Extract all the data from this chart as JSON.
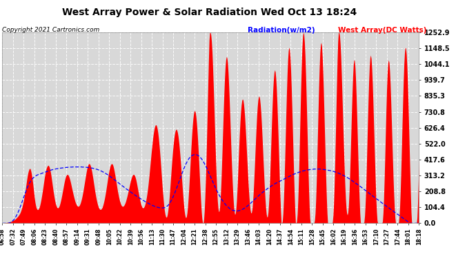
{
  "title": "West Array Power & Solar Radiation Wed Oct 13 18:24",
  "copyright": "Copyright 2021 Cartronics.com",
  "legend_radiation": "Radiation(w/m2)",
  "legend_west": "West Array(DC Watts)",
  "y_ticks": [
    0.0,
    104.4,
    208.8,
    313.2,
    417.6,
    522.0,
    626.4,
    730.8,
    835.3,
    939.7,
    1044.1,
    1148.5,
    1252.9
  ],
  "y_max": 1252.9,
  "background_color": "#ffffff",
  "plot_bg_color": "#d8d8d8",
  "grid_color": "#ffffff",
  "title_color": "#000000",
  "radiation_color": "#0000ff",
  "west_array_color": "#ff0000",
  "x_labels": [
    "06:58",
    "07:32",
    "07:49",
    "08:06",
    "08:23",
    "08:40",
    "08:57",
    "09:14",
    "09:31",
    "09:48",
    "10:05",
    "10:22",
    "10:39",
    "10:56",
    "11:13",
    "11:30",
    "11:47",
    "12:04",
    "12:21",
    "12:38",
    "12:55",
    "13:12",
    "13:29",
    "13:46",
    "14:03",
    "14:20",
    "14:37",
    "14:54",
    "15:11",
    "15:28",
    "15:45",
    "16:02",
    "16:19",
    "16:36",
    "16:53",
    "17:10",
    "17:27",
    "17:44",
    "18:01",
    "18:18"
  ],
  "n_points": 700,
  "west_profile": [
    0,
    0,
    0,
    2,
    2,
    3,
    3,
    4,
    5,
    5,
    6,
    7,
    8,
    9,
    10,
    12,
    14,
    16,
    18,
    20,
    22,
    25,
    28,
    32,
    36,
    40,
    45,
    50,
    56,
    62,
    70,
    80,
    92,
    105,
    120,
    138,
    158,
    180,
    205,
    230,
    258,
    285,
    310,
    330,
    345,
    355,
    360,
    355,
    340,
    320,
    295,
    265,
    230,
    195,
    162,
    135,
    115,
    100,
    92,
    88,
    90,
    95,
    105,
    118,
    135,
    155,
    178,
    202,
    228,
    255,
    282,
    308,
    330,
    348,
    362,
    372,
    378,
    380,
    375,
    365,
    350,
    330,
    305,
    278,
    250,
    222,
    196,
    172,
    150,
    132,
    118,
    108,
    102,
    100,
    102,
    108,
    118,
    132,
    148,
    166,
    186,
    207,
    228,
    250,
    270,
    288,
    302,
    312,
    318,
    320,
    318,
    312,
    302,
    290,
    275,
    258,
    240,
    222,
    205,
    188,
    172,
    157,
    143,
    132,
    123,
    116,
    112,
    110,
    111,
    115,
    122,
    132,
    145,
    160,
    178,
    198,
    220,
    244,
    268,
    292,
    316,
    338,
    358,
    374,
    385,
    390,
    390,
    385,
    375,
    360,
    342,
    320,
    296,
    270,
    244,
    218,
    194,
    172,
    152,
    135,
    120,
    108,
    99,
    93,
    90,
    90,
    93,
    99,
    108,
    120,
    135,
    152,
    172,
    194,
    218,
    244,
    270,
    296,
    320,
    342,
    360,
    375,
    385,
    390,
    390,
    385,
    374,
    358,
    338,
    316,
    292,
    268,
    244,
    220,
    198,
    178,
    160,
    145,
    132,
    122,
    115,
    111,
    110,
    112,
    116,
    123,
    132,
    143,
    157,
    172,
    188,
    205,
    222,
    240,
    258,
    275,
    290,
    302,
    312,
    318,
    320,
    318,
    312,
    302,
    288,
    270,
    250,
    228,
    207,
    186,
    166,
    148,
    132,
    118,
    108,
    102,
    100,
    102,
    108,
    118,
    132,
    150,
    172,
    198,
    228,
    262,
    300,
    340,
    382,
    424,
    465,
    504,
    540,
    573,
    600,
    622,
    637,
    645,
    645,
    637,
    620,
    595,
    562,
    522,
    476,
    425,
    370,
    315,
    260,
    208,
    160,
    118,
    84,
    60,
    44,
    38,
    42,
    58,
    84,
    120,
    164,
    214,
    268,
    323,
    378,
    430,
    478,
    520,
    555,
    583,
    603,
    614,
    616,
    609,
    594,
    570,
    538,
    499,
    454,
    404,
    350,
    294,
    238,
    185,
    136,
    94,
    62,
    42,
    35,
    44,
    68,
    108,
    162,
    226,
    296,
    370,
    445,
    517,
    583,
    640,
    686,
    718,
    736,
    738,
    726,
    698,
    656,
    601,
    536,
    462,
    382,
    300,
    219,
    143,
    78,
    30,
    4,
    0,
    24,
    80,
    170,
    285,
    420,
    571,
    733,
    900,
    1063,
    1201,
    1252,
    1252,
    1235,
    1192,
    1123,
    1031,
    920,
    797,
    668,
    541,
    420,
    311,
    218,
    146,
    98,
    75,
    80,
    114,
    175,
    262,
    368,
    488,
    614,
    738,
    852,
    950,
    1025,
    1073,
    1093,
    1085,
    1049,
    987,
    903,
    803,
    693,
    580,
    468,
    363,
    269,
    188,
    124,
    80,
    58,
    62,
    90,
    143,
    218,
    308,
    404,
    500,
    589,
    667,
    730,
    776,
    805,
    815,
    808,
    782,
    740,
    683,
    615,
    540,
    461,
    383,
    307,
    237,
    175,
    124,
    88,
    68,
    67,
    87,
    128,
    188,
    263,
    350,
    443,
    537,
    625,
    703,
    765,
    808,
    831,
    833,
    814,
    776,
    720,
    650,
    570,
    483,
    395,
    308,
    228,
    157,
    100,
    60,
    40,
    43,
    72,
    128,
    209,
    310,
    425,
    546,
    666,
    776,
    870,
    942,
    988,
    1006,
    994,
    952,
    882,
    788,
    677,
    556,
    430,
    305,
    187,
    84,
    5,
    0,
    14,
    64,
    152,
    270,
    410,
    561,
    714,
    856,
    978,
    1072,
    1132,
    1154,
    1138,
    1086,
    1002,
    891,
    760,
    616,
    468,
    324,
    192,
    82,
    4,
    0,
    12,
    60,
    148,
    267,
    411,
    574,
    742,
    903,
    1044,
    1155,
    1225,
    1252,
    1240,
    1188,
    1101,
    984,
    844,
    690,
    532,
    378,
    238,
    119,
    32,
    0,
    0,
    0,
    0,
    0,
    0,
    2,
    18,
    64,
    148,
    268,
    416,
    578,
    740,
    892,
    1021,
    1118,
    1173,
    1186,
    1156,
    1088,
    987,
    860,
    718,
    569,
    422,
    284,
    162,
    64,
    0,
    0,
    0,
    0,
    0,
    0,
    0,
    0,
    8,
    50,
    128,
    244,
    390,
    558,
    736,
    910,
    1068,
    1190,
    1252,
    1252,
    1232,
    1178,
    1095,
    988,
    865,
    732,
    598,
    468,
    348,
    244,
    160,
    100,
    64,
    54,
    72,
    120,
    200,
    308,
    436,
    576,
    716,
    846,
    956,
    1034,
    1072,
    1067,
    1020,
    938,
    826,
    694,
    554,
    414,
    280,
    162,
    68,
    6,
    0,
    0,
    0,
    0,
    0,
    8,
    48,
    122,
    230,
    362,
    510,
    663,
    808,
    933,
    1029,
    1086,
    1103,
    1080,
    1018,
    926,
    810,
    678,
    540,
    404,
    276,
    164,
    76,
    18,
    0,
    0,
    0,
    0,
    0,
    0,
    0,
    0,
    12,
    68,
    162,
    289,
    436,
    592,
    744,
    878,
    982,
    1048,
    1072,
    1055,
    1000,
    912,
    800,
    674,
    542,
    412,
    290,
    184,
    98,
    36,
    2,
    0,
    0,
    0,
    0,
    6,
    44,
    116,
    220,
    349,
    496,
    650,
    800,
    934,
    1042,
    1116,
    1152,
    1149,
    1108,
    1032,
    924,
    793,
    646,
    492,
    340,
    196,
    72,
    0,
    0,
    0,
    0,
    0,
    0,
    0,
    0,
    0,
    36,
    128,
    261,
    424
  ],
  "radiation_profile": [
    0,
    0,
    0,
    0,
    0,
    0,
    0,
    0,
    0,
    0,
    0,
    2,
    3,
    4,
    6,
    8,
    11,
    14,
    18,
    22,
    27,
    32,
    38,
    45,
    52,
    60,
    68,
    77,
    86,
    96,
    106,
    117,
    128,
    139,
    150,
    162,
    173,
    184,
    195,
    206,
    216,
    226,
    235,
    244,
    252,
    260,
    267,
    274,
    280,
    285,
    290,
    294,
    298,
    302,
    305,
    308,
    310,
    313,
    315,
    317,
    318,
    320,
    321,
    323,
    324,
    325,
    327,
    328,
    330,
    331,
    332,
    334,
    335,
    337,
    338,
    340,
    341,
    342,
    344,
    345,
    346,
    347,
    349,
    350,
    351,
    352,
    353,
    354,
    355,
    355,
    356,
    357,
    357,
    358,
    359,
    359,
    360,
    361,
    361,
    362,
    362,
    363,
    363,
    364,
    364,
    365,
    365,
    366,
    366,
    366,
    367,
    367,
    367,
    368,
    368,
    368,
    368,
    368,
    369,
    369,
    369,
    369,
    369,
    369,
    369,
    369,
    369,
    369,
    369,
    369,
    369,
    369,
    369,
    369,
    368,
    368,
    368,
    368,
    368,
    367,
    367,
    367,
    366,
    366,
    365,
    365,
    364,
    364,
    363,
    362,
    362,
    361,
    360,
    359,
    358,
    357,
    356,
    355,
    354,
    353,
    352,
    350,
    349,
    347,
    346,
    344,
    342,
    340,
    338,
    336,
    334,
    332,
    330,
    327,
    325,
    322,
    320,
    317,
    314,
    312,
    309,
    306,
    303,
    300,
    297,
    294,
    291,
    288,
    285,
    282,
    279,
    276,
    273,
    270,
    267,
    264,
    261,
    258,
    255,
    252,
    249,
    246,
    243,
    240,
    237,
    234,
    231,
    228,
    225,
    222,
    220,
    217,
    214,
    211,
    208,
    205,
    202,
    200,
    197,
    194,
    192,
    189,
    186,
    183,
    181,
    178,
    175,
    173,
    170,
    168,
    165,
    163,
    160,
    158,
    155,
    153,
    150,
    148,
    146,
    143,
    141,
    139,
    136,
    134,
    132,
    130,
    128,
    126,
    124,
    122,
    120,
    118,
    116,
    115,
    113,
    111,
    110,
    108,
    107,
    106,
    105,
    104,
    103,
    102,
    101,
    101,
    100,
    100,
    100,
    100,
    100,
    101,
    102,
    103,
    105,
    107,
    110,
    113,
    117,
    121,
    126,
    132,
    138,
    145,
    152,
    160,
    168,
    177,
    186,
    195,
    205,
    215,
    225,
    235,
    246,
    256,
    267,
    278,
    289,
    300,
    311,
    322,
    332,
    342,
    352,
    362,
    371,
    380,
    388,
    396,
    404,
    411,
    417,
    423,
    428,
    433,
    437,
    440,
    443,
    445,
    447,
    449,
    450,
    450,
    450,
    450,
    449,
    447,
    445,
    443,
    440,
    437,
    433,
    428,
    423,
    418,
    412,
    406,
    399,
    392,
    385,
    377,
    369,
    361,
    353,
    344,
    335,
    326,
    317,
    308,
    299,
    290,
    281,
    272,
    263,
    254,
    246,
    237,
    229,
    221,
    213,
    205,
    198,
    190,
    183,
    176,
    170,
    163,
    157,
    151,
    146,
    140,
    135,
    130,
    125,
    120,
    116,
    112,
    108,
    105,
    101,
    98,
    95,
    93,
    90,
    88,
    86,
    84,
    83,
    82,
    81,
    80,
    80,
    80,
    80,
    80,
    81,
    82,
    83,
    84,
    86,
    87,
    89,
    91,
    93,
    95,
    98,
    100,
    103,
    106,
    109,
    112,
    115,
    118,
    122,
    125,
    129,
    132,
    136,
    140,
    143,
    147,
    151,
    154,
    158,
    162,
    165,
    169,
    172,
    176,
    180,
    183,
    187,
    190,
    193,
    197,
    200,
    203,
    206,
    209,
    212,
    215,
    218,
    221,
    224,
    227,
    230,
    233,
    235,
    238,
    241,
    243,
    246,
    248,
    251,
    253,
    256,
    258,
    260,
    262,
    264,
    266,
    268,
    270,
    272,
    274,
    276,
    278,
    280,
    282,
    284,
    286,
    288,
    290,
    292,
    294,
    296,
    298,
    300,
    302,
    304,
    306,
    308,
    310,
    312,
    314,
    316,
    318,
    320,
    321,
    323,
    324,
    326,
    327,
    329,
    330,
    332,
    333,
    335,
    336,
    337,
    339,
    340,
    341,
    342,
    343,
    344,
    345,
    346,
    347,
    347,
    348,
    349,
    350,
    350,
    351,
    352,
    352,
    353,
    353,
    354,
    354,
    354,
    355,
    355,
    355,
    355,
    355,
    355,
    355,
    355,
    355,
    355,
    355,
    354,
    354,
    354,
    353,
    353,
    352,
    352,
    351,
    351,
    350,
    349,
    349,
    348,
    347,
    346,
    346,
    345,
    344,
    343,
    342,
    341,
    340,
    339,
    338,
    337,
    335,
    334,
    333,
    331,
    330,
    328,
    327,
    325,
    323,
    322,
    320,
    318,
    316,
    314,
    312,
    310,
    308,
    306,
    304,
    301,
    299,
    297,
    294,
    292,
    289,
    287,
    284,
    281,
    279,
    276,
    273,
    271,
    268,
    265,
    262,
    260,
    257,
    254,
    251,
    249,
    246,
    243,
    240,
    237,
    234,
    231,
    228,
    225,
    222,
    219,
    216,
    213,
    210,
    207,
    204,
    201,
    198,
    195,
    192,
    189,
    186,
    183,
    180,
    177,
    174,
    171,
    168,
    165,
    162,
    159,
    157,
    154,
    151,
    148,
    145,
    142,
    139,
    136,
    133,
    130,
    128,
    125,
    122,
    119,
    116,
    113,
    110,
    107,
    105,
    102,
    99,
    96,
    93,
    90,
    87,
    84,
    82,
    79,
    76,
    73,
    70,
    68,
    65,
    62,
    59,
    56,
    54,
    51,
    48,
    45,
    42,
    40,
    37,
    34,
    31,
    28,
    26,
    23,
    20,
    17,
    14,
    12,
    9,
    6,
    3,
    0,
    0,
    0,
    0,
    0,
    0,
    0,
    0,
    0,
    0,
    0,
    0,
    0,
    0,
    0,
    0
  ]
}
